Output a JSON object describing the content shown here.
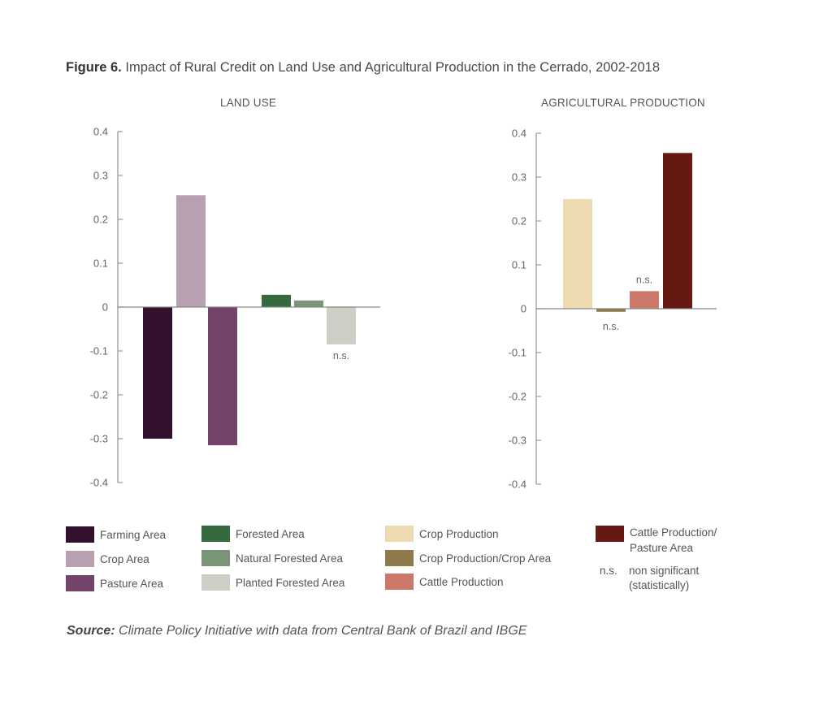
{
  "figure": {
    "title_prefix": "Figure 6.",
    "title_text": "Impact of Rural Credit on Land Use and Agricultural Production in the Cerrado, 2002-2018"
  },
  "chart_data": [
    {
      "type": "bar",
      "title": "LAND USE",
      "xlabel": "",
      "ylabel": "",
      "ylim": [
        -0.4,
        0.4
      ],
      "yticks": [
        0.4,
        0.3,
        0.2,
        0.1,
        0,
        -0.1,
        -0.2,
        -0.3,
        -0.4
      ],
      "ytick_labels": [
        "0.4",
        "0.3",
        "0.2",
        "0.1",
        "0",
        "-0.1",
        "-0.2",
        "-0.3",
        "-0.4"
      ],
      "categories": [
        "Farming Area",
        "Crop Area",
        "Pasture Area",
        "Forested Area",
        "Natural Forested Area",
        "Planted Forested Area"
      ],
      "values": [
        -0.3,
        0.255,
        -0.315,
        0.028,
        0.015,
        -0.085
      ],
      "colors": [
        "#33102c",
        "#b89fb2",
        "#744369",
        "#346a3e",
        "#7a9478",
        "#cbcfc6"
      ],
      "significant": [
        true,
        true,
        true,
        true,
        true,
        false
      ],
      "grid": false
    },
    {
      "type": "bar",
      "title": "AGRICULTURAL PRODUCTION",
      "xlabel": "",
      "ylabel": "",
      "ylim": [
        -0.4,
        0.4
      ],
      "yticks": [
        0.4,
        0.3,
        0.2,
        0.1,
        0,
        -0.1,
        -0.2,
        -0.3,
        -0.4
      ],
      "ytick_labels": [
        "0.4",
        "0.3",
        "0.2",
        "0.1",
        "0",
        "-0.1",
        "-0.2",
        "-0.3",
        "-0.4"
      ],
      "categories": [
        "Crop Production",
        "Crop Production/Crop Area",
        "Cattle Production",
        "Cattle Production/Pasture Area"
      ],
      "values": [
        0.25,
        -0.007,
        0.04,
        0.355
      ],
      "colors": [
        "#eedab0",
        "#8e7a4a",
        "#cc7868",
        "#661812"
      ],
      "significant": [
        true,
        false,
        false,
        true
      ],
      "grid": false
    }
  ],
  "annotations": {
    "ns": "n.s."
  },
  "legend": {
    "items": [
      {
        "label": "Farming Area",
        "color": "#33102c"
      },
      {
        "label": "Crop Area",
        "color": "#b89fb2"
      },
      {
        "label": "Pasture Area",
        "color": "#744369"
      },
      {
        "label": "Forested Area",
        "color": "#346a3e"
      },
      {
        "label": "Natural Forested Area",
        "color": "#7a9478"
      },
      {
        "label": "Planted Forested Area",
        "color": "#cbcfc6"
      },
      {
        "label": "Crop Production",
        "color": "#eedab0"
      },
      {
        "label": "Crop Production/Crop Area",
        "color": "#8e7a4a"
      },
      {
        "label": "Cattle Production",
        "color": "#cc7868"
      },
      {
        "label_line1": "Cattle Production/",
        "label_line2": "Pasture Area",
        "color": "#661812"
      }
    ],
    "ns_key": "n.s.",
    "ns_text_line1": "non significant",
    "ns_text_line2": "(statistically)"
  },
  "source": {
    "prefix": "Source:",
    "text": "Climate Policy Initiative with data from Central Bank of Brazil and IBGE"
  }
}
